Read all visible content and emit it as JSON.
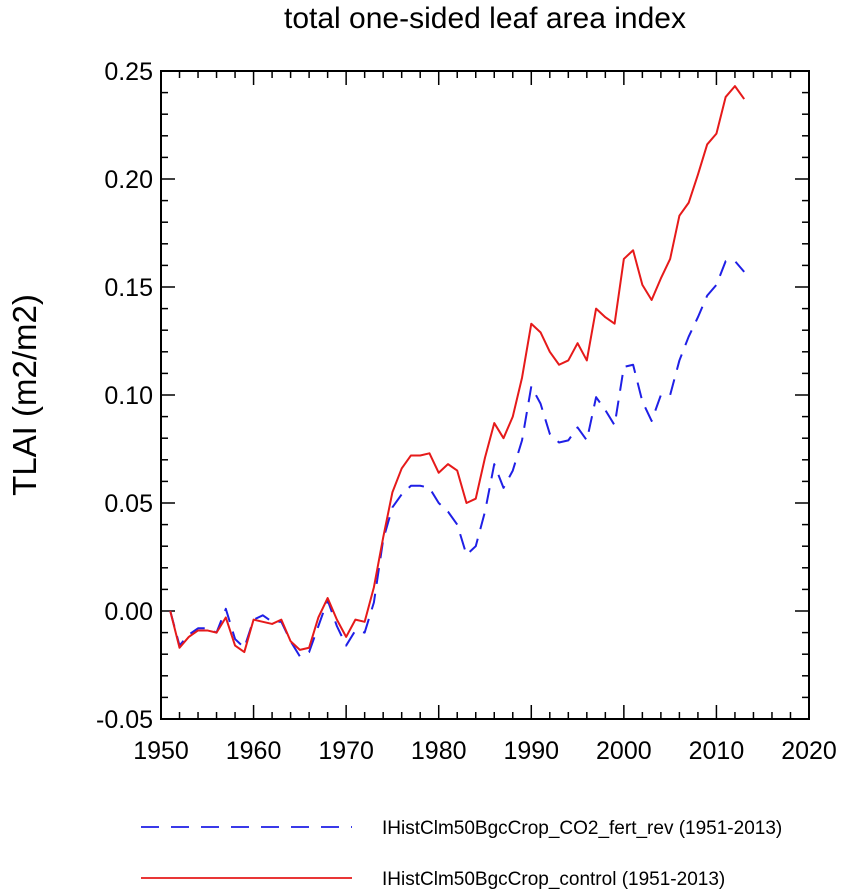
{
  "chart_data": {
    "type": "line",
    "title": "total one-sided leaf area index",
    "xlabel": "",
    "ylabel": "TLAI  (m2/m2)",
    "xlim": [
      1950,
      2020
    ],
    "ylim": [
      -0.05,
      0.25
    ],
    "xticks": [
      1950,
      1960,
      1970,
      1980,
      1990,
      2000,
      2010,
      2020
    ],
    "xtick_labels": [
      "1950",
      "1960",
      "1970",
      "1980",
      "1990",
      "2000",
      "2010",
      "2020"
    ],
    "yticks": [
      -0.05,
      0.0,
      0.05,
      0.1,
      0.15,
      0.2,
      0.25
    ],
    "ytick_labels": [
      "-0.05",
      "0.00",
      "0.05",
      "0.10",
      "0.15",
      "0.20",
      "0.25"
    ],
    "grid": false,
    "legend_position": "bottom",
    "x": [
      1951,
      1952,
      1953,
      1954,
      1955,
      1956,
      1957,
      1958,
      1959,
      1960,
      1961,
      1962,
      1963,
      1964,
      1965,
      1966,
      1967,
      1968,
      1969,
      1970,
      1971,
      1972,
      1973,
      1974,
      1975,
      1976,
      1977,
      1978,
      1979,
      1980,
      1981,
      1982,
      1983,
      1984,
      1985,
      1986,
      1987,
      1988,
      1989,
      1990,
      1991,
      1992,
      1993,
      1994,
      1995,
      1996,
      1997,
      1998,
      1999,
      2000,
      2001,
      2002,
      2003,
      2004,
      2005,
      2006,
      2007,
      2008,
      2009,
      2010,
      2011,
      2012,
      2013
    ],
    "series": [
      {
        "name": "IHistClm50BgcCrop_CO2_fert_rev (1951-2013)",
        "color": "#1f1fe6",
        "dash": "dashed",
        "values": [
          0.0,
          -0.016,
          -0.011,
          -0.008,
          -0.008,
          -0.01,
          0.001,
          -0.013,
          -0.017,
          -0.004,
          -0.002,
          -0.005,
          -0.005,
          -0.014,
          -0.021,
          -0.019,
          -0.007,
          0.005,
          -0.007,
          -0.016,
          -0.009,
          -0.01,
          0.004,
          0.033,
          0.048,
          0.054,
          0.058,
          0.058,
          0.057,
          0.05,
          0.046,
          0.04,
          0.026,
          0.03,
          0.046,
          0.068,
          0.057,
          0.065,
          0.079,
          0.104,
          0.096,
          0.082,
          0.078,
          0.079,
          0.085,
          0.079,
          0.099,
          0.093,
          0.086,
          0.113,
          0.114,
          0.097,
          0.088,
          0.1,
          0.1,
          0.116,
          0.127,
          0.136,
          0.146,
          0.151,
          0.162,
          0.162,
          0.157
        ]
      },
      {
        "name": "IHistClm50BgcCrop_control (1951-2013)",
        "color": "#e61a1a",
        "dash": "solid",
        "values": [
          0.0,
          -0.017,
          -0.012,
          -0.009,
          -0.009,
          -0.01,
          -0.003,
          -0.016,
          -0.019,
          -0.004,
          -0.005,
          -0.006,
          -0.004,
          -0.014,
          -0.018,
          -0.017,
          -0.003,
          0.006,
          -0.004,
          -0.012,
          -0.004,
          -0.005,
          0.011,
          0.034,
          0.055,
          0.066,
          0.072,
          0.072,
          0.073,
          0.064,
          0.068,
          0.065,
          0.05,
          0.052,
          0.071,
          0.087,
          0.08,
          0.09,
          0.108,
          0.133,
          0.129,
          0.12,
          0.114,
          0.116,
          0.124,
          0.116,
          0.14,
          0.136,
          0.133,
          0.163,
          0.167,
          0.151,
          0.144,
          0.154,
          0.163,
          0.183,
          0.189,
          0.202,
          0.216,
          0.221,
          0.238,
          0.243,
          0.237
        ]
      }
    ]
  }
}
